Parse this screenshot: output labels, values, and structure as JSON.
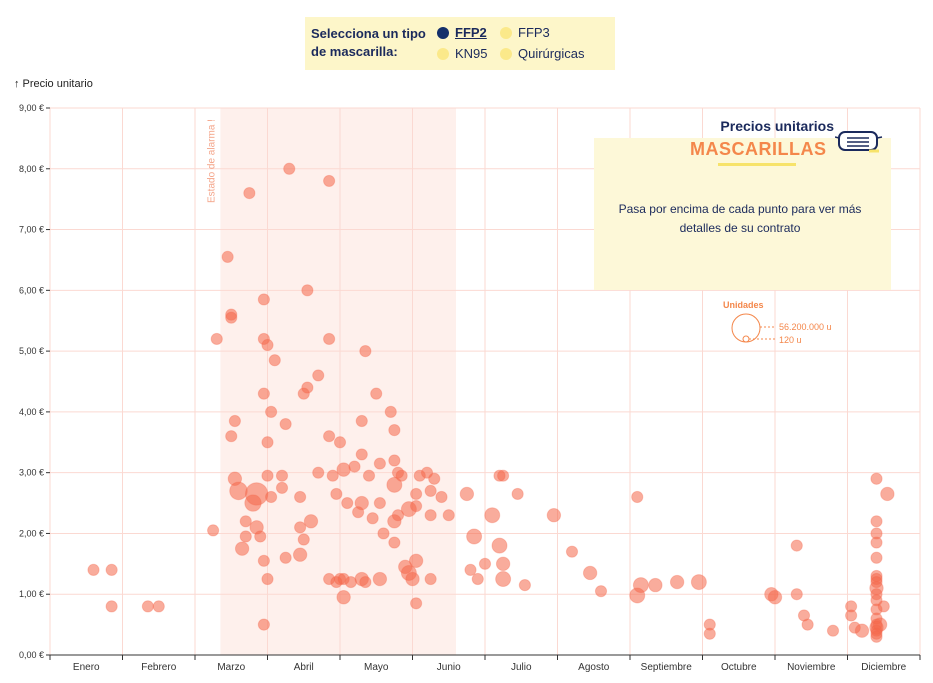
{
  "legend": {
    "title": "Selecciona un tipo de mascarilla:",
    "items": [
      {
        "label": "FFP2",
        "color": "#14306b",
        "active": true
      },
      {
        "label": "FFP3",
        "color": "#fbe98a",
        "active": false
      },
      {
        "label": "KN95",
        "color": "#fbe98a",
        "active": false
      },
      {
        "label": "Quirúrgicas",
        "color": "#fbe98a",
        "active": false
      }
    ]
  },
  "info": {
    "title": "Precios unitarios",
    "subtitle": "MASCARILLAS",
    "text": "Pasa por encima de cada punto para ver más detalles de su contrato"
  },
  "size_legend": {
    "title": "Unidades",
    "max_label": "56.200.000 u",
    "min_label": "120 u"
  },
  "chart_data": {
    "type": "scatter",
    "ylabel": "Precio unitario",
    "ylim": [
      0,
      9
    ],
    "xlim": [
      0,
      12
    ],
    "yticks": [
      "0,00 €",
      "1,00 €",
      "2,00 €",
      "3,00 €",
      "4,00 €",
      "5,00 €",
      "6,00 €",
      "7,00 €",
      "8,00 €",
      "9,00 €"
    ],
    "months": [
      "Enero",
      "Febrero",
      "Marzo",
      "Abril",
      "Mayo",
      "Junio",
      "Julio",
      "Agosto",
      "Septiembre",
      "Octubre",
      "Noviembre",
      "Diciembre"
    ],
    "annotation": {
      "label": "Estado de alarma !",
      "x_start": 2.35,
      "x_end": 5.6
    },
    "accent_color": "#f4874b",
    "points": [
      {
        "x": 0.6,
        "y": 1.4,
        "s": 1
      },
      {
        "x": 0.85,
        "y": 1.4,
        "s": 1
      },
      {
        "x": 0.85,
        "y": 0.8,
        "s": 1
      },
      {
        "x": 1.35,
        "y": 0.8,
        "s": 1
      },
      {
        "x": 1.5,
        "y": 0.8,
        "s": 1
      },
      {
        "x": 2.25,
        "y": 2.05,
        "s": 1
      },
      {
        "x": 2.3,
        "y": 5.2,
        "s": 1
      },
      {
        "x": 2.45,
        "y": 6.55,
        "s": 1
      },
      {
        "x": 2.5,
        "y": 5.6,
        "s": 1
      },
      {
        "x": 2.5,
        "y": 5.55,
        "s": 1
      },
      {
        "x": 2.5,
        "y": 3.6,
        "s": 1
      },
      {
        "x": 2.55,
        "y": 3.85,
        "s": 1
      },
      {
        "x": 2.55,
        "y": 2.9,
        "s": 2
      },
      {
        "x": 2.6,
        "y": 2.7,
        "s": 5
      },
      {
        "x": 2.65,
        "y": 1.75,
        "s": 2
      },
      {
        "x": 2.7,
        "y": 2.2,
        "s": 1
      },
      {
        "x": 2.7,
        "y": 1.95,
        "s": 1
      },
      {
        "x": 2.75,
        "y": 7.6,
        "s": 1
      },
      {
        "x": 2.8,
        "y": 2.5,
        "s": 4
      },
      {
        "x": 2.85,
        "y": 2.65,
        "s": 10
      },
      {
        "x": 2.85,
        "y": 2.1,
        "s": 2
      },
      {
        "x": 2.9,
        "y": 1.95,
        "s": 1
      },
      {
        "x": 2.95,
        "y": 5.85,
        "s": 1
      },
      {
        "x": 2.95,
        "y": 5.2,
        "s": 1
      },
      {
        "x": 2.95,
        "y": 4.3,
        "s": 1
      },
      {
        "x": 2.95,
        "y": 1.55,
        "s": 1
      },
      {
        "x": 2.95,
        "y": 0.5,
        "s": 1
      },
      {
        "x": 3.0,
        "y": 5.1,
        "s": 1
      },
      {
        "x": 3.0,
        "y": 3.5,
        "s": 1
      },
      {
        "x": 3.0,
        "y": 2.95,
        "s": 1
      },
      {
        "x": 3.0,
        "y": 1.25,
        "s": 1
      },
      {
        "x": 3.05,
        "y": 4.0,
        "s": 1
      },
      {
        "x": 3.05,
        "y": 2.6,
        "s": 1
      },
      {
        "x": 3.1,
        "y": 4.85,
        "s": 1
      },
      {
        "x": 3.2,
        "y": 2.95,
        "s": 1
      },
      {
        "x": 3.2,
        "y": 2.75,
        "s": 1
      },
      {
        "x": 3.25,
        "y": 3.8,
        "s": 1
      },
      {
        "x": 3.25,
        "y": 1.6,
        "s": 1
      },
      {
        "x": 3.3,
        "y": 8.0,
        "s": 1
      },
      {
        "x": 3.45,
        "y": 2.6,
        "s": 1
      },
      {
        "x": 3.45,
        "y": 2.1,
        "s": 1
      },
      {
        "x": 3.45,
        "y": 1.65,
        "s": 2
      },
      {
        "x": 3.5,
        "y": 4.3,
        "s": 1
      },
      {
        "x": 3.5,
        "y": 1.9,
        "s": 1
      },
      {
        "x": 3.55,
        "y": 6.0,
        "s": 1
      },
      {
        "x": 3.55,
        "y": 4.4,
        "s": 1
      },
      {
        "x": 3.6,
        "y": 2.2,
        "s": 2
      },
      {
        "x": 3.7,
        "y": 4.6,
        "s": 1
      },
      {
        "x": 3.7,
        "y": 3.0,
        "s": 1
      },
      {
        "x": 3.85,
        "y": 7.8,
        "s": 1
      },
      {
        "x": 3.85,
        "y": 5.2,
        "s": 1
      },
      {
        "x": 3.85,
        "y": 3.6,
        "s": 1
      },
      {
        "x": 3.85,
        "y": 1.25,
        "s": 1
      },
      {
        "x": 3.9,
        "y": 2.95,
        "s": 1
      },
      {
        "x": 3.95,
        "y": 2.65,
        "s": 1
      },
      {
        "x": 3.95,
        "y": 1.2,
        "s": 1
      },
      {
        "x": 4.0,
        "y": 3.5,
        "s": 1
      },
      {
        "x": 4.0,
        "y": 1.25,
        "s": 1
      },
      {
        "x": 4.05,
        "y": 3.05,
        "s": 2
      },
      {
        "x": 4.05,
        "y": 0.95,
        "s": 2
      },
      {
        "x": 4.05,
        "y": 1.25,
        "s": 1
      },
      {
        "x": 4.1,
        "y": 2.5,
        "s": 1
      },
      {
        "x": 4.15,
        "y": 1.2,
        "s": 1
      },
      {
        "x": 4.2,
        "y": 3.1,
        "s": 1
      },
      {
        "x": 4.25,
        "y": 2.35,
        "s": 1
      },
      {
        "x": 4.3,
        "y": 3.85,
        "s": 1
      },
      {
        "x": 4.3,
        "y": 3.3,
        "s": 1
      },
      {
        "x": 4.3,
        "y": 2.5,
        "s": 2
      },
      {
        "x": 4.3,
        "y": 1.25,
        "s": 2
      },
      {
        "x": 4.35,
        "y": 5.0,
        "s": 1
      },
      {
        "x": 4.35,
        "y": 1.2,
        "s": 1
      },
      {
        "x": 4.4,
        "y": 2.95,
        "s": 1
      },
      {
        "x": 4.45,
        "y": 2.25,
        "s": 1
      },
      {
        "x": 4.5,
        "y": 4.3,
        "s": 1
      },
      {
        "x": 4.55,
        "y": 3.15,
        "s": 1
      },
      {
        "x": 4.55,
        "y": 2.5,
        "s": 1
      },
      {
        "x": 4.55,
        "y": 1.25,
        "s": 2
      },
      {
        "x": 4.6,
        "y": 2.0,
        "s": 1
      },
      {
        "x": 4.7,
        "y": 4.0,
        "s": 1
      },
      {
        "x": 4.75,
        "y": 3.7,
        "s": 1
      },
      {
        "x": 4.75,
        "y": 3.2,
        "s": 1
      },
      {
        "x": 4.75,
        "y": 2.8,
        "s": 3
      },
      {
        "x": 4.75,
        "y": 2.2,
        "s": 2
      },
      {
        "x": 4.75,
        "y": 1.85,
        "s": 1
      },
      {
        "x": 4.8,
        "y": 3.0,
        "s": 1
      },
      {
        "x": 4.8,
        "y": 2.3,
        "s": 1
      },
      {
        "x": 4.85,
        "y": 2.95,
        "s": 1
      },
      {
        "x": 4.9,
        "y": 1.45,
        "s": 2
      },
      {
        "x": 4.95,
        "y": 2.4,
        "s": 3
      },
      {
        "x": 4.95,
        "y": 1.35,
        "s": 3
      },
      {
        "x": 5.0,
        "y": 1.25,
        "s": 2
      },
      {
        "x": 5.05,
        "y": 2.65,
        "s": 1
      },
      {
        "x": 5.05,
        "y": 1.55,
        "s": 2
      },
      {
        "x": 5.05,
        "y": 0.85,
        "s": 1
      },
      {
        "x": 5.05,
        "y": 2.45,
        "s": 1
      },
      {
        "x": 5.1,
        "y": 2.95,
        "s": 1
      },
      {
        "x": 5.2,
        "y": 3.0,
        "s": 1
      },
      {
        "x": 5.25,
        "y": 2.7,
        "s": 1
      },
      {
        "x": 5.25,
        "y": 2.3,
        "s": 1
      },
      {
        "x": 5.25,
        "y": 1.25,
        "s": 1
      },
      {
        "x": 5.3,
        "y": 2.9,
        "s": 1
      },
      {
        "x": 5.4,
        "y": 2.6,
        "s": 1
      },
      {
        "x": 5.5,
        "y": 2.3,
        "s": 1
      },
      {
        "x": 5.75,
        "y": 2.65,
        "s": 2
      },
      {
        "x": 5.8,
        "y": 1.4,
        "s": 1
      },
      {
        "x": 5.85,
        "y": 1.95,
        "s": 3
      },
      {
        "x": 5.9,
        "y": 1.25,
        "s": 1
      },
      {
        "x": 6.0,
        "y": 1.5,
        "s": 1
      },
      {
        "x": 6.1,
        "y": 2.3,
        "s": 3
      },
      {
        "x": 6.2,
        "y": 2.95,
        "s": 1
      },
      {
        "x": 6.2,
        "y": 1.8,
        "s": 3
      },
      {
        "x": 6.25,
        "y": 2.95,
        "s": 1
      },
      {
        "x": 6.25,
        "y": 1.5,
        "s": 2
      },
      {
        "x": 6.25,
        "y": 1.25,
        "s": 3
      },
      {
        "x": 6.45,
        "y": 2.65,
        "s": 1
      },
      {
        "x": 6.55,
        "y": 1.15,
        "s": 1
      },
      {
        "x": 6.95,
        "y": 2.3,
        "s": 2
      },
      {
        "x": 7.2,
        "y": 1.7,
        "s": 1
      },
      {
        "x": 7.45,
        "y": 1.35,
        "s": 2
      },
      {
        "x": 7.6,
        "y": 1.05,
        "s": 1
      },
      {
        "x": 8.1,
        "y": 2.6,
        "s": 1
      },
      {
        "x": 8.1,
        "y": 0.98,
        "s": 3
      },
      {
        "x": 8.15,
        "y": 1.15,
        "s": 3
      },
      {
        "x": 8.35,
        "y": 1.15,
        "s": 2
      },
      {
        "x": 8.65,
        "y": 1.2,
        "s": 2
      },
      {
        "x": 8.95,
        "y": 1.2,
        "s": 3
      },
      {
        "x": 9.1,
        "y": 0.5,
        "s": 1
      },
      {
        "x": 9.1,
        "y": 0.35,
        "s": 1
      },
      {
        "x": 9.95,
        "y": 1.0,
        "s": 2
      },
      {
        "x": 10.0,
        "y": 0.95,
        "s": 2
      },
      {
        "x": 10.3,
        "y": 1.8,
        "s": 1
      },
      {
        "x": 10.3,
        "y": 1.0,
        "s": 1
      },
      {
        "x": 10.4,
        "y": 0.65,
        "s": 1
      },
      {
        "x": 10.45,
        "y": 0.5,
        "s": 1
      },
      {
        "x": 10.8,
        "y": 0.4,
        "s": 1
      },
      {
        "x": 11.05,
        "y": 0.8,
        "s": 1
      },
      {
        "x": 11.05,
        "y": 0.65,
        "s": 1
      },
      {
        "x": 11.1,
        "y": 0.45,
        "s": 1
      },
      {
        "x": 11.2,
        "y": 0.4,
        "s": 2
      },
      {
        "x": 11.4,
        "y": 2.9,
        "s": 1
      },
      {
        "x": 11.4,
        "y": 2.2,
        "s": 1
      },
      {
        "x": 11.4,
        "y": 2.0,
        "s": 1
      },
      {
        "x": 11.4,
        "y": 1.85,
        "s": 1
      },
      {
        "x": 11.4,
        "y": 1.6,
        "s": 1
      },
      {
        "x": 11.4,
        "y": 1.3,
        "s": 1
      },
      {
        "x": 11.4,
        "y": 1.25,
        "s": 1
      },
      {
        "x": 11.4,
        "y": 1.2,
        "s": 1
      },
      {
        "x": 11.4,
        "y": 1.1,
        "s": 2
      },
      {
        "x": 11.4,
        "y": 1.0,
        "s": 1
      },
      {
        "x": 11.4,
        "y": 0.9,
        "s": 1
      },
      {
        "x": 11.4,
        "y": 0.75,
        "s": 1
      },
      {
        "x": 11.4,
        "y": 0.6,
        "s": 1
      },
      {
        "x": 11.4,
        "y": 0.5,
        "s": 1
      },
      {
        "x": 11.4,
        "y": 0.45,
        "s": 2
      },
      {
        "x": 11.4,
        "y": 0.4,
        "s": 1
      },
      {
        "x": 11.4,
        "y": 0.35,
        "s": 1
      },
      {
        "x": 11.4,
        "y": 0.3,
        "s": 1
      },
      {
        "x": 11.45,
        "y": 0.5,
        "s": 2
      },
      {
        "x": 11.5,
        "y": 0.8,
        "s": 1
      },
      {
        "x": 11.55,
        "y": 2.65,
        "s": 2
      }
    ]
  }
}
